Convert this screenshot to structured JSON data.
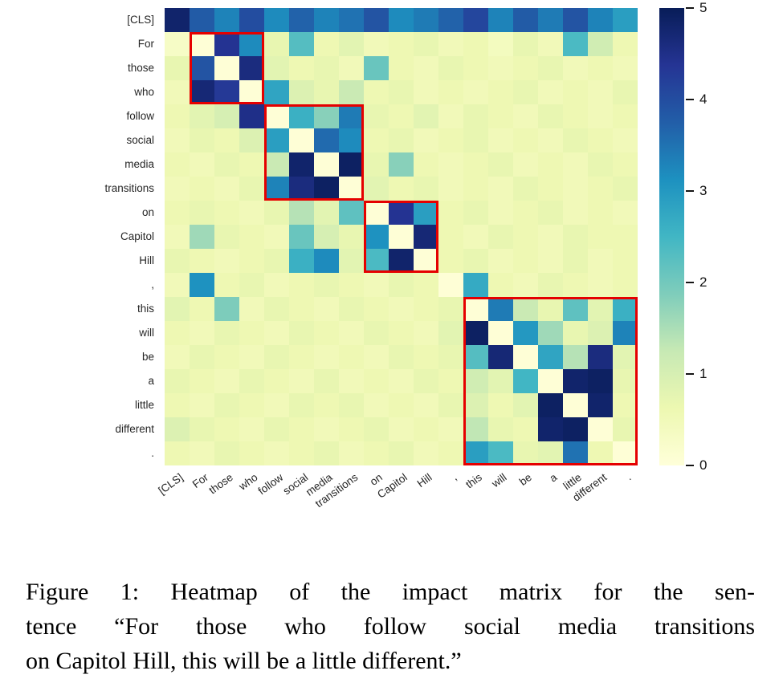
{
  "figure": {
    "caption_lines": [
      "Figure 1: Heatmap of the impact matrix for the sen-",
      "tence “For those who follow social media transitions",
      "on Capitol Hill, this will be a little different.”"
    ]
  },
  "chart_data": {
    "type": "heatmap",
    "title": "",
    "xlabel": "",
    "ylabel": "",
    "tokens": [
      "[CLS]",
      "For",
      "those",
      "who",
      "follow",
      "social",
      "media",
      "transitions",
      "on",
      "Capitol",
      "Hill",
      ",",
      "this",
      "will",
      "be",
      "a",
      "little",
      "different",
      "."
    ],
    "vmin": 0,
    "vmax": 5,
    "colorbar_ticks": [
      5,
      4,
      3,
      2,
      1,
      0
    ],
    "colormap": "YlGnBu",
    "colormap_stops": [
      [
        "0.0",
        "#ffffd9"
      ],
      [
        "0.125",
        "#edf8b1"
      ],
      [
        "0.25",
        "#c7e9b4"
      ],
      [
        "0.375",
        "#7fcdbb"
      ],
      [
        "0.5",
        "#41b6c4"
      ],
      [
        "0.625",
        "#1d91c0"
      ],
      [
        "0.75",
        "#225ea8"
      ],
      [
        "0.875",
        "#253494"
      ],
      [
        "1.0",
        "#081d58"
      ]
    ],
    "highlight_color": "#e50000",
    "highlight_boxes": [
      {
        "start": 1,
        "end": 3,
        "phrase": "For those who"
      },
      {
        "start": 4,
        "end": 7,
        "phrase": "follow social media transitions"
      },
      {
        "start": 8,
        "end": 10,
        "phrase": "on Capitol Hill"
      },
      {
        "start": 12,
        "end": 18,
        "phrase": "this will be a little different ."
      }
    ],
    "matrix": [
      [
        4.8,
        3.8,
        3.3,
        4.0,
        3.2,
        3.7,
        3.3,
        3.5,
        3.9,
        3.2,
        3.4,
        3.7,
        4.1,
        3.3,
        3.8,
        3.4,
        3.9,
        3.3,
        2.9
      ],
      [
        0.3,
        0.05,
        4.4,
        3.2,
        0.7,
        2.3,
        0.6,
        0.8,
        0.5,
        0.6,
        0.7,
        0.5,
        0.6,
        0.4,
        0.7,
        0.5,
        2.4,
        1.1,
        0.6
      ],
      [
        0.7,
        3.9,
        0.05,
        4.6,
        0.8,
        0.6,
        0.7,
        0.5,
        2.1,
        0.6,
        0.5,
        0.7,
        0.6,
        0.5,
        0.6,
        0.7,
        0.5,
        0.6,
        0.5
      ],
      [
        0.5,
        4.7,
        4.3,
        0.05,
        2.8,
        0.9,
        0.7,
        1.2,
        0.6,
        0.7,
        0.5,
        0.6,
        0.5,
        0.6,
        0.7,
        0.5,
        0.6,
        0.5,
        0.7
      ],
      [
        0.6,
        0.8,
        1.0,
        4.5,
        0.05,
        2.6,
        1.8,
        3.4,
        0.7,
        0.6,
        0.8,
        0.5,
        0.7,
        0.6,
        0.5,
        0.7,
        0.6,
        0.5,
        0.6
      ],
      [
        0.5,
        0.7,
        0.6,
        0.9,
        2.9,
        0.05,
        3.6,
        3.2,
        0.6,
        0.7,
        0.5,
        0.6,
        0.7,
        0.5,
        0.6,
        0.5,
        0.7,
        0.6,
        0.5
      ],
      [
        0.6,
        0.5,
        0.7,
        0.6,
        1.2,
        4.8,
        0.05,
        4.9,
        0.7,
        1.8,
        0.6,
        0.5,
        0.6,
        0.7,
        0.5,
        0.6,
        0.5,
        0.7,
        0.6
      ],
      [
        0.5,
        0.6,
        0.5,
        0.7,
        3.3,
        4.6,
        4.9,
        0.05,
        0.8,
        0.6,
        0.7,
        0.5,
        0.6,
        0.5,
        0.7,
        0.6,
        0.5,
        0.6,
        0.7
      ],
      [
        0.6,
        0.7,
        0.6,
        0.5,
        0.7,
        1.4,
        0.8,
        2.2,
        0.05,
        4.4,
        2.9,
        0.6,
        0.7,
        0.5,
        0.6,
        0.7,
        0.5,
        0.6,
        0.5
      ],
      [
        0.5,
        1.6,
        0.7,
        0.6,
        0.5,
        2.1,
        1.0,
        0.7,
        3.1,
        0.05,
        4.7,
        0.6,
        0.5,
        0.7,
        0.6,
        0.5,
        0.7,
        0.6,
        0.6
      ],
      [
        0.7,
        0.6,
        0.5,
        0.6,
        0.7,
        2.6,
        3.2,
        0.8,
        2.4,
        4.8,
        0.05,
        0.6,
        0.7,
        0.5,
        0.6,
        0.5,
        0.7,
        0.5,
        0.6
      ],
      [
        0.5,
        3.1,
        0.6,
        0.7,
        0.5,
        0.6,
        0.7,
        0.6,
        0.5,
        0.7,
        0.6,
        0.05,
        2.7,
        0.6,
        0.5,
        0.7,
        0.6,
        0.5,
        0.6
      ],
      [
        0.8,
        0.6,
        1.9,
        0.5,
        0.7,
        0.6,
        0.5,
        0.7,
        0.6,
        0.5,
        0.6,
        0.7,
        0.05,
        3.4,
        1.2,
        0.7,
        2.2,
        0.8,
        2.6
      ],
      [
        0.6,
        0.5,
        0.7,
        0.6,
        0.5,
        0.7,
        0.6,
        0.5,
        0.7,
        0.6,
        0.5,
        0.8,
        4.9,
        0.05,
        3.0,
        1.6,
        0.7,
        0.9,
        3.3
      ],
      [
        0.5,
        0.7,
        0.6,
        0.5,
        0.7,
        0.6,
        0.5,
        0.6,
        0.5,
        0.7,
        0.6,
        0.7,
        2.3,
        4.7,
        0.05,
        2.8,
        1.4,
        4.6,
        0.8
      ],
      [
        0.7,
        0.6,
        0.5,
        0.7,
        0.6,
        0.5,
        0.7,
        0.5,
        0.6,
        0.5,
        0.7,
        0.6,
        1.1,
        0.8,
        2.5,
        0.05,
        4.8,
        4.9,
        0.7
      ],
      [
        0.6,
        0.5,
        0.7,
        0.6,
        0.5,
        0.7,
        0.6,
        0.7,
        0.5,
        0.6,
        0.5,
        0.7,
        0.9,
        0.6,
        0.8,
        4.9,
        0.05,
        4.8,
        0.6
      ],
      [
        0.9,
        0.7,
        0.6,
        0.5,
        0.7,
        0.6,
        0.5,
        0.6,
        0.7,
        0.5,
        0.6,
        0.5,
        1.3,
        0.7,
        0.6,
        4.8,
        4.9,
        0.05,
        0.7
      ],
      [
        0.6,
        0.5,
        0.7,
        0.6,
        0.5,
        0.6,
        0.7,
        0.5,
        0.6,
        0.7,
        0.5,
        0.6,
        2.9,
        2.4,
        0.7,
        0.8,
        3.5,
        0.6,
        0.05
      ]
    ]
  }
}
